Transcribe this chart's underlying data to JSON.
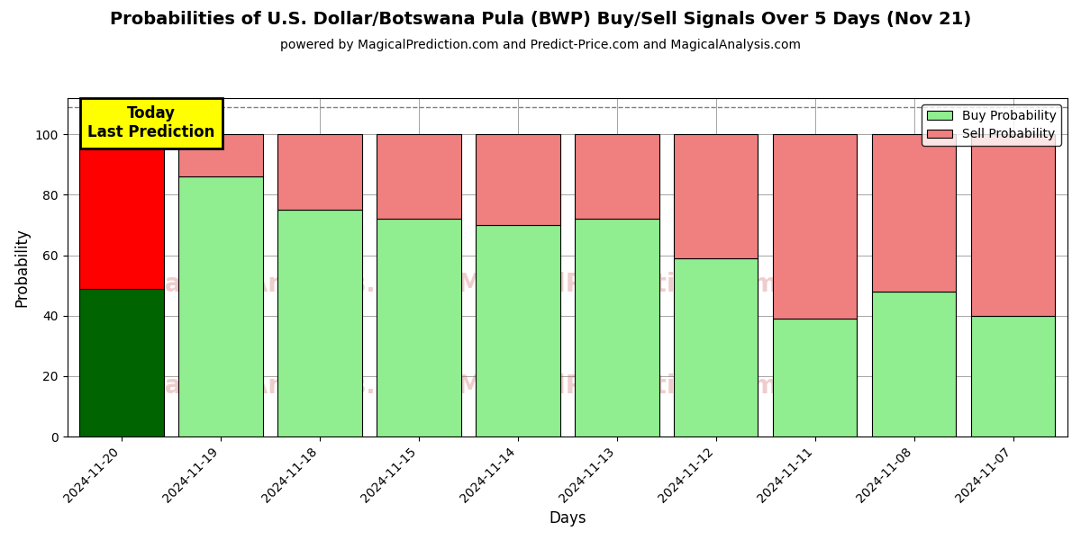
{
  "title": "Probabilities of U.S. Dollar/Botswana Pula (BWP) Buy/Sell Signals Over 5 Days (Nov 21)",
  "subtitle": "powered by MagicalPrediction.com and Predict-Price.com and MagicalAnalysis.com",
  "xlabel": "Days",
  "ylabel": "Probability",
  "categories": [
    "2024-11-20",
    "2024-11-19",
    "2024-11-18",
    "2024-11-15",
    "2024-11-14",
    "2024-11-13",
    "2024-11-12",
    "2024-11-11",
    "2024-11-08",
    "2024-11-07"
  ],
  "buy_values": [
    49,
    86,
    75,
    72,
    70,
    72,
    59,
    39,
    48,
    40
  ],
  "sell_values": [
    51,
    14,
    25,
    28,
    30,
    28,
    41,
    61,
    52,
    60
  ],
  "buy_colors": [
    "#006400",
    "#90EE90",
    "#90EE90",
    "#90EE90",
    "#90EE90",
    "#90EE90",
    "#90EE90",
    "#90EE90",
    "#90EE90",
    "#90EE90"
  ],
  "sell_colors": [
    "#FF0000",
    "#F08080",
    "#F08080",
    "#F08080",
    "#F08080",
    "#F08080",
    "#F08080",
    "#F08080",
    "#F08080",
    "#F08080"
  ],
  "today_label": "Today\nLast Prediction",
  "legend_buy_label": "Buy Probability",
  "legend_sell_label": "Sell Probability",
  "ylim": [
    0,
    112
  ],
  "yticks": [
    0,
    20,
    40,
    60,
    80,
    100
  ],
  "dashed_line_y": 109,
  "background_color": "#ffffff",
  "bar_edge_color": "#000000",
  "bar_width": 0.85,
  "figsize": [
    12,
    6
  ],
  "dpi": 100
}
